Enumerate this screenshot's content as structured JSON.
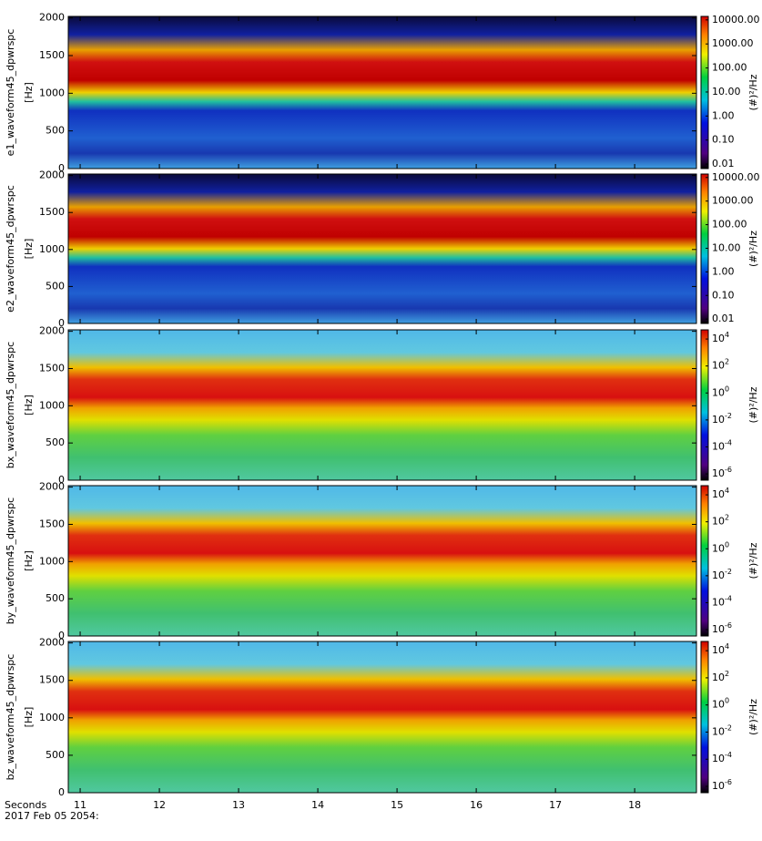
{
  "chart_data": [
    {
      "type": "heatmap",
      "ylabel": "e1_waveform45_dpwrspc",
      "yunit": "[Hz]",
      "ylim": [
        0,
        2020
      ],
      "yticks": [
        0,
        500,
        1000,
        1500,
        2000
      ],
      "xlim": [
        10.85,
        18.78
      ],
      "colorbar": {
        "title": "(#)²/Hz",
        "log": true,
        "lim": [
          0.0065,
          14000
        ],
        "ticks": [
          {
            "value": 10000,
            "label": "10000.00"
          },
          {
            "value": 1000,
            "label": "1000.00"
          },
          {
            "value": 100,
            "label": "100.00"
          },
          {
            "value": 10,
            "label": "10.00"
          },
          {
            "value": 1,
            "label": "1.00"
          },
          {
            "value": 0.1,
            "label": "0.10"
          },
          {
            "value": 0.01,
            "label": "0.01"
          }
        ]
      }
    },
    {
      "type": "heatmap",
      "ylabel": "e2_waveform45_dpwrspc",
      "yunit": "[Hz]",
      "ylim": [
        0,
        2020
      ],
      "yticks": [
        0,
        500,
        1000,
        1500,
        2000
      ],
      "xlim": [
        10.85,
        18.78
      ],
      "colorbar": {
        "title": "(#)²/Hz",
        "log": true,
        "lim": [
          0.0065,
          14000
        ],
        "ticks": [
          {
            "value": 10000,
            "label": "10000.00"
          },
          {
            "value": 1000,
            "label": "1000.00"
          },
          {
            "value": 100,
            "label": "100.00"
          },
          {
            "value": 10,
            "label": "10.00"
          },
          {
            "value": 1,
            "label": "1.00"
          },
          {
            "value": 0.1,
            "label": "0.10"
          },
          {
            "value": 0.01,
            "label": "0.01"
          }
        ]
      }
    },
    {
      "type": "heatmap",
      "ylabel": "bx_waveform45_dpwrspc",
      "yunit": "[Hz]",
      "ylim": [
        0,
        2020
      ],
      "yticks": [
        0,
        500,
        1000,
        1500,
        2000
      ],
      "xlim": [
        10.85,
        18.78
      ],
      "colorbar": {
        "title": "(#)²/Hz",
        "log": true,
        "lim": [
          3.4e-07,
          48000
        ],
        "ticks": [
          {
            "value": 10000,
            "label": "10^4"
          },
          {
            "value": 100,
            "label": "10^2"
          },
          {
            "value": 1,
            "label": "10^0"
          },
          {
            "value": 0.01,
            "label": "10^-2"
          },
          {
            "value": 0.0001,
            "label": "10^-4"
          },
          {
            "value": 1e-06,
            "label": "10^-6"
          }
        ]
      }
    },
    {
      "type": "heatmap",
      "ylabel": "by_waveform45_dpwrspc",
      "yunit": "[Hz]",
      "ylim": [
        0,
        2020
      ],
      "yticks": [
        0,
        500,
        1000,
        1500,
        2000
      ],
      "xlim": [
        10.85,
        18.78
      ],
      "colorbar": {
        "title": "(#)²/Hz",
        "log": true,
        "lim": [
          3.4e-07,
          48000
        ],
        "ticks": [
          {
            "value": 10000,
            "label": "10^4"
          },
          {
            "value": 100,
            "label": "10^2"
          },
          {
            "value": 1,
            "label": "10^0"
          },
          {
            "value": 0.01,
            "label": "10^-2"
          },
          {
            "value": 0.0001,
            "label": "10^-4"
          },
          {
            "value": 1e-06,
            "label": "10^-6"
          }
        ]
      }
    },
    {
      "type": "heatmap",
      "ylabel": "bz_waveform45_dpwrspc",
      "yunit": "[Hz]",
      "ylim": [
        0,
        2020
      ],
      "yticks": [
        0,
        500,
        1000,
        1500,
        2000
      ],
      "xlim": [
        10.85,
        18.78
      ],
      "xticks": [
        11,
        12,
        13,
        14,
        15,
        16,
        17,
        18
      ],
      "xlabel": "Seconds",
      "xsublabel": "2017 Feb 05 2054:",
      "colorbar": {
        "title": "(#)²/Hz",
        "log": true,
        "lim": [
          3.4e-07,
          48000
        ],
        "ticks": [
          {
            "value": 10000,
            "label": "10^4"
          },
          {
            "value": 100,
            "label": "10^2"
          },
          {
            "value": 1,
            "label": "10^0"
          },
          {
            "value": 0.01,
            "label": "10^-2"
          },
          {
            "value": 0.0001,
            "label": "10^-4"
          },
          {
            "value": 1e-06,
            "label": "10^-6"
          }
        ]
      }
    }
  ]
}
